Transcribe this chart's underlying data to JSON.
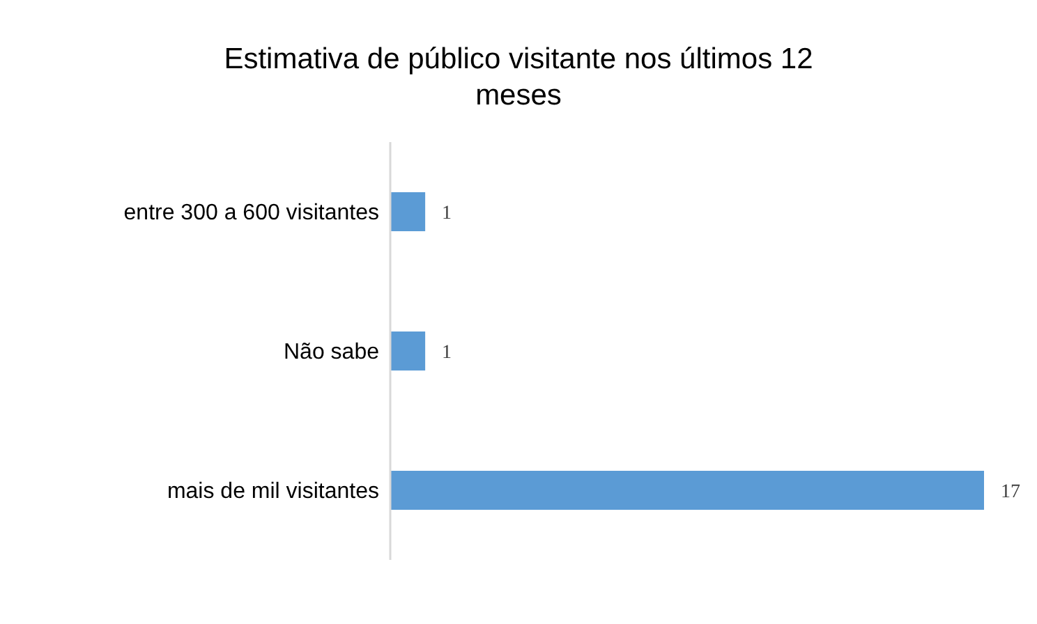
{
  "chart_data": {
    "type": "bar",
    "orientation": "horizontal",
    "title": "Estimativa de público visitante nos últimos 12 meses",
    "categories": [
      "entre 300 a 600 visitantes",
      "Não sabe",
      "mais de mil visitantes"
    ],
    "values": [
      1,
      1,
      17
    ],
    "color": "#5b9bd5",
    "data_labels": true,
    "grid": false,
    "legend": false
  }
}
